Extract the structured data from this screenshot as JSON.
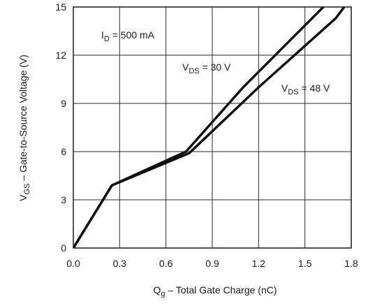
{
  "chart_data": {
    "type": "line",
    "title": "",
    "xlabel": {
      "main": "Q",
      "sub": "g",
      "rest": "  –  Total Gate Charge (nC)"
    },
    "ylabel": {
      "main": "V",
      "sub": "GS",
      "rest": "  –  Gate-to-Source Voltage (V)"
    },
    "xlim": [
      0.0,
      1.8
    ],
    "ylim": [
      0,
      15
    ],
    "x_ticks": [
      "0.0",
      "0.3",
      "0.6",
      "0.9",
      "1.2",
      "1.5",
      "1.8"
    ],
    "y_ticks": [
      "0",
      "3",
      "6",
      "9",
      "12",
      "15"
    ],
    "grid": true,
    "series": [
      {
        "name": {
          "main": "V",
          "sub": "DS",
          "rest": " = 30 V"
        },
        "points": [
          [
            0.0,
            0.0
          ],
          [
            0.25,
            3.9
          ],
          [
            0.73,
            6.0
          ],
          [
            1.1,
            10.0
          ],
          [
            1.64,
            15.2
          ]
        ]
      },
      {
        "name": {
          "main": "V",
          "sub": "DS",
          "rest": " = 48 V"
        },
        "points": [
          [
            0.0,
            0.0
          ],
          [
            0.25,
            3.9
          ],
          [
            0.75,
            5.9
          ],
          [
            1.2,
            10.0
          ],
          [
            1.7,
            14.3
          ],
          [
            1.77,
            15.2
          ]
        ]
      }
    ],
    "annotations": [
      {
        "main": "I",
        "sub": "D",
        "rest": " = 500 mA"
      }
    ]
  }
}
